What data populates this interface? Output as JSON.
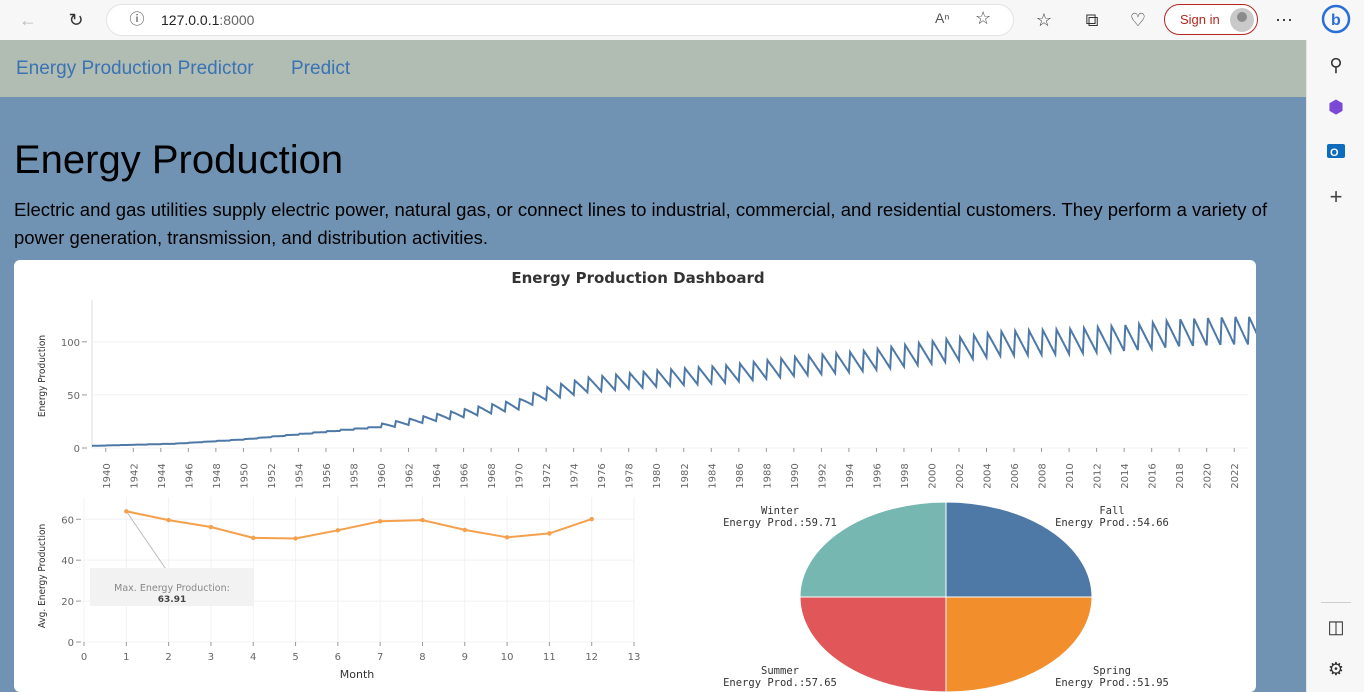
{
  "browser": {
    "url_host": "127.0.0.1",
    "url_port": ":8000",
    "read_aloud": "A",
    "sign_in": "Sign in"
  },
  "nav": {
    "brand": "Energy Production Predictor",
    "predict": "Predict"
  },
  "page": {
    "title": "Energy Production",
    "description": "Electric and gas utilities supply electric power, natural gas, or connect lines to industrial, commercial, and residential customers. They perform a variety of power generation, transmission, and distribution activities."
  },
  "dashboard": {
    "title": "Energy Production Dashboard"
  },
  "colors": {
    "line": "#4e79a7",
    "month_line": "#f5a04b",
    "winter": "#76b7b2",
    "fall": "#4e79a7",
    "summer": "#e15759",
    "spring": "#f28e2b"
  },
  "chart_data": [
    {
      "type": "line",
      "ylabel": "Energy Production",
      "xlabel": "",
      "ylim": [
        0,
        130
      ],
      "yticks": [
        0,
        50,
        100
      ],
      "xlim": [
        1939,
        2023
      ],
      "xticks": [
        1940,
        1942,
        1944,
        1946,
        1948,
        1950,
        1952,
        1954,
        1956,
        1958,
        1960,
        1962,
        1964,
        1966,
        1968,
        1970,
        1972,
        1974,
        1976,
        1978,
        1980,
        1982,
        1984,
        1986,
        1988,
        1990,
        1992,
        1994,
        1996,
        1998,
        2000,
        2002,
        2004,
        2006,
        2008,
        2010,
        2012,
        2014,
        2016,
        2018,
        2020,
        2022
      ],
      "series": [
        {
          "x": [
            1939,
            1945,
            1950,
            1955,
            1960,
            1965,
            1970,
            1972,
            1975,
            1980,
            1985,
            1990,
            1995,
            2000,
            2005,
            2010,
            2015,
            2018,
            2022
          ],
          "values": [
            2,
            4,
            8,
            14,
            20,
            30,
            40,
            50,
            58,
            64,
            68,
            75,
            80,
            88,
            96,
            98,
            102,
            106,
            108
          ]
        }
      ]
    },
    {
      "type": "line",
      "xlabel": "Month",
      "ylabel": "Avg. Energy Production",
      "xlim": [
        0,
        13
      ],
      "ylim": [
        0,
        66
      ],
      "xticks": [
        0,
        1,
        2,
        3,
        4,
        5,
        6,
        7,
        8,
        9,
        10,
        11,
        12,
        13
      ],
      "yticks": [
        0,
        20,
        40,
        60
      ],
      "x": [
        1,
        2,
        3,
        4,
        5,
        6,
        7,
        8,
        9,
        10,
        11,
        12
      ],
      "values": [
        63.91,
        59.6,
        56.2,
        50.9,
        50.6,
        54.6,
        59.0,
        59.6,
        54.8,
        51.2,
        53.1,
        60.1
      ],
      "annotation": {
        "label": "Max. Energy Production:",
        "value": "63.91"
      }
    },
    {
      "type": "pie",
      "slices": [
        {
          "season": "Winter",
          "label": "Energy Prod.:59.71",
          "value": 59.71
        },
        {
          "season": "Fall",
          "label": "Energy Prod.:54.66",
          "value": 54.66
        },
        {
          "season": "Summer",
          "label": "Energy Prod.:57.65",
          "value": 57.65
        },
        {
          "season": "Spring",
          "label": "Energy Prod.:51.95",
          "value": 51.95
        }
      ]
    }
  ]
}
